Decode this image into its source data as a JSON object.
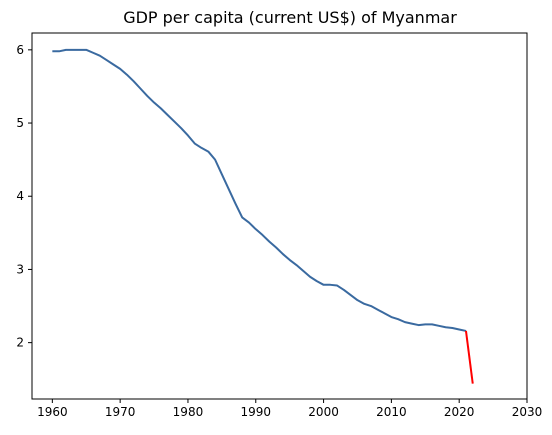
{
  "chart_data": {
    "type": "line",
    "title": "GDP per capita (current US$) of Myanmar",
    "xlabel": "",
    "ylabel": "",
    "xlim": [
      1957,
      2030
    ],
    "ylim": [
      1.23,
      6.23
    ],
    "x_ticks": [
      1960,
      1970,
      1980,
      1990,
      2000,
      2010,
      2020,
      2030
    ],
    "y_ticks": [
      2,
      3,
      4,
      5,
      6
    ],
    "grid": false,
    "series": [
      {
        "color": "#3a6aa0",
        "x": [
          1960,
          1961,
          1962,
          1963,
          1964,
          1965,
          1966,
          1967,
          1968,
          1969,
          1970,
          1971,
          1972,
          1973,
          1974,
          1975,
          1976,
          1977,
          1978,
          1979,
          1980,
          1981,
          1982,
          1983,
          1984,
          1985,
          1986,
          1987,
          1988,
          1989,
          1990,
          1991,
          1992,
          1993,
          1994,
          1995,
          1996,
          1997,
          1998,
          1999,
          2000,
          2001,
          2002,
          2003,
          2004,
          2005,
          2006,
          2007,
          2008,
          2009,
          2010,
          2011,
          2012,
          2013,
          2014,
          2015,
          2016,
          2017,
          2018,
          2019,
          2020,
          2021
        ],
        "values": [
          5.98,
          5.98,
          6.0,
          6.0,
          6.0,
          6.0,
          5.96,
          5.92,
          5.86,
          5.8,
          5.74,
          5.66,
          5.57,
          5.47,
          5.37,
          5.28,
          5.2,
          5.11,
          5.02,
          4.93,
          4.83,
          4.72,
          4.66,
          4.61,
          4.5,
          4.3,
          4.1,
          3.9,
          3.71,
          3.64,
          3.55,
          3.47,
          3.38,
          3.3,
          3.21,
          3.13,
          3.06,
          2.98,
          2.9,
          2.84,
          2.79,
          2.79,
          2.78,
          2.72,
          2.65,
          2.58,
          2.53,
          2.5,
          2.45,
          2.4,
          2.35,
          2.32,
          2.28,
          2.26,
          2.24,
          2.25,
          2.25,
          2.23,
          2.21,
          2.2,
          2.18,
          2.16
        ]
      },
      {
        "color": "#ff0000",
        "x": [
          2021,
          2022
        ],
        "values": [
          2.16,
          1.44
        ]
      }
    ]
  }
}
